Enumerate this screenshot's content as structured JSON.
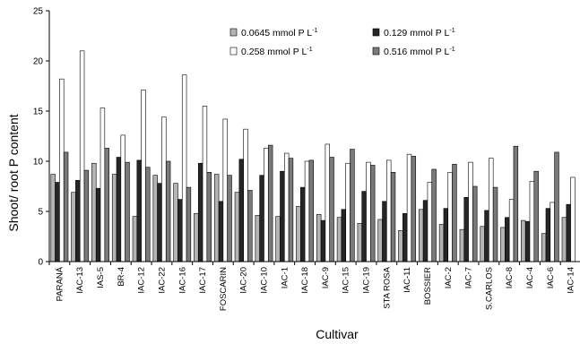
{
  "chart_data": {
    "type": "bar",
    "xlabel": "Cultivar",
    "ylabel": "Shoot/ root  P content",
    "ylim": [
      0,
      25
    ],
    "yticks": [
      0,
      5,
      10,
      15,
      20,
      25
    ],
    "grid": false,
    "legend_position": "top-right",
    "categories": [
      "PARANÁ",
      "IAC-13",
      "IAS-5",
      "BR-4",
      "IAC-12",
      "IAC-22",
      "IAC-16",
      "IAC-17",
      "FOSCARIN",
      "IAC-20",
      "IAC-10",
      "IAC-1",
      "IAC-18",
      "IAC-9",
      "IAC-15",
      "IAC-19",
      "STA ROSA",
      "IAC-11",
      "BOSSIER",
      "IAC-2",
      "IAC-7",
      "S.CARLOS",
      "IAC-8",
      "IAC-4",
      "IAC-6",
      "IAC-14"
    ],
    "series": [
      {
        "name": "0.0645 mmol P L",
        "unit_superscript": "-1",
        "color": "#b4b4b4",
        "values": [
          8.7,
          6.9,
          9.8,
          8.7,
          4.5,
          8.6,
          7.8,
          4.8,
          8.7,
          6.9,
          4.6,
          4.5,
          5.5,
          4.7,
          4.4,
          3.8,
          4.2,
          3.1,
          5.2,
          3.7,
          3.2,
          3.5,
          3.4,
          4.1,
          2.8,
          4.4
        ]
      },
      {
        "name": "0.129 mmol P L",
        "unit_superscript": "-1",
        "color": "#262626",
        "values": [
          7.9,
          8.1,
          7.3,
          10.4,
          10.1,
          7.8,
          6.2,
          9.8,
          6.0,
          10.2,
          8.6,
          9.0,
          7.4,
          4.1,
          5.2,
          7.0,
          6.0,
          4.8,
          6.1,
          5.3,
          6.4,
          5.1,
          4.4,
          4.0,
          5.3,
          5.7
        ]
      },
      {
        "name": "0.258 mmol P L",
        "unit_superscript": "-1",
        "color": "#ffffff",
        "values": [
          18.2,
          21.0,
          15.3,
          12.6,
          17.1,
          14.4,
          18.6,
          15.5,
          14.2,
          13.2,
          11.3,
          10.8,
          10.0,
          11.7,
          9.8,
          9.9,
          10.1,
          10.7,
          7.9,
          8.9,
          9.9,
          10.3,
          6.2,
          8.0,
          5.9,
          8.4
        ]
      },
      {
        "name": "0.516 mmol P L",
        "unit_superscript": "-1",
        "color": "#7a7a7a",
        "values": [
          10.9,
          9.1,
          11.3,
          9.9,
          9.4,
          10.0,
          7.4,
          8.9,
          8.6,
          7.1,
          11.6,
          10.3,
          10.1,
          10.4,
          11.2,
          9.6,
          8.9,
          10.5,
          9.2,
          9.7,
          7.5,
          7.4,
          11.5,
          9.0,
          10.9,
          0
        ]
      }
    ]
  }
}
